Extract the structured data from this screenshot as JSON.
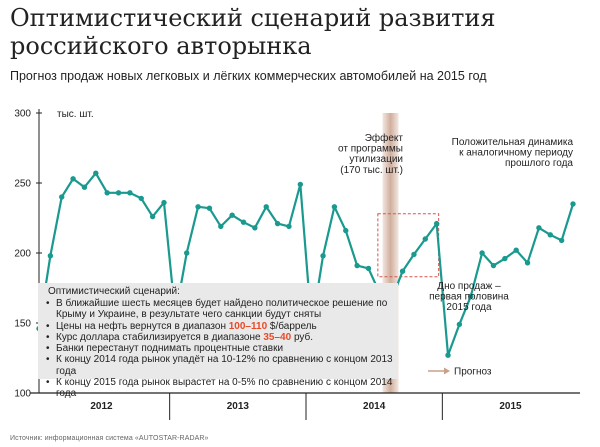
{
  "title": "Оптимистический сценарий развития российского авторынка",
  "subtitle": "Прогноз продаж новых легковых и лёгких коммерческих автомобилей на 2015 год",
  "source": "Источник: информационная система «AUTOSTAR-RADAR»",
  "colors": {
    "line": "#1a998f",
    "forecast_band": "#c9a08a",
    "highlight": "#e84a27",
    "dashed_box": "#d9534f",
    "infobox": "#e9e9e9",
    "axis": "#222222"
  },
  "infobox": {
    "title": "Оптимистический сценарий:",
    "items": [
      {
        "parts": [
          {
            "text": "В ближайшие шесть месяцев будет найдено политическое решение по Крыму и Украине, в результате чего санкции будут сняты"
          }
        ]
      },
      {
        "parts": [
          {
            "text": "Цены на нефть вернутся в диапазон "
          },
          {
            "text": "100–110",
            "hl": true
          },
          {
            "text": " $/баррель"
          }
        ]
      },
      {
        "parts": [
          {
            "text": "Курс доллара стабилизируется в диапазоне "
          },
          {
            "text": "35–40",
            "hl": true
          },
          {
            "text": " руб."
          }
        ]
      },
      {
        "parts": [
          {
            "text": "Банки перестанут поднимать процентные ставки"
          }
        ]
      },
      {
        "parts": [
          {
            "text": "К концу 2014 года рынок упадёт на 10-12% по сравнению с концом 2013 года"
          }
        ]
      },
      {
        "parts": [
          {
            "text": "К концу 2015 года рынок вырастет на 0-5% по сравнению с концом 2014 года"
          }
        ]
      }
    ]
  },
  "annotations": {
    "utilization": [
      "Эффект",
      "от программы",
      "утилизации",
      "(170 тыс. шт.)"
    ],
    "positive": [
      "Положительная динамика",
      "к аналогичному периоду",
      "прошлого года"
    ],
    "first_half": [
      "Дно продаж –",
      "первая половина",
      "2015 года"
    ],
    "forecast": "Прогноз"
  },
  "chart_data": {
    "type": "line",
    "title": "Оптимистический сценарий развития российского авторынка",
    "subtitle": "Прогноз продаж новых легковых и лёгких коммерческих автомобилей на 2015 год",
    "unit_label": "тыс. шт.",
    "ylim": [
      100,
      300
    ],
    "yticks": [
      100,
      150,
      200,
      250,
      300
    ],
    "grid": false,
    "years": [
      {
        "label": "2012",
        "start": 0,
        "end": 12
      },
      {
        "label": "2013",
        "start": 12,
        "end": 24
      },
      {
        "label": "2014",
        "start": 24,
        "end": 36
      },
      {
        "label": "2015",
        "start": 36,
        "end": 48
      }
    ],
    "forecast_start_index": 31,
    "series": [
      {
        "values": [
          146,
          198,
          240,
          253,
          247,
          257,
          243,
          243,
          243,
          239,
          226,
          236,
          155,
          200,
          233,
          232,
          219,
          227,
          222,
          218,
          233,
          221,
          219,
          249,
          147,
          198,
          233,
          216,
          191,
          189,
          171,
          166,
          187,
          199,
          210,
          221,
          127,
          149,
          169,
          200,
          191,
          196,
          202,
          193,
          218,
          213,
          209,
          235
        ]
      }
    ]
  }
}
